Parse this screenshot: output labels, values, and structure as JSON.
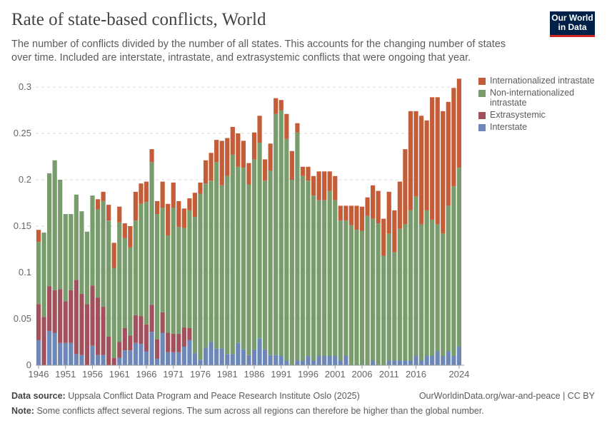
{
  "header": {
    "title": "Rate of state-based conflicts, World",
    "subtitle": "The number of conflicts divided by the number of all states. This accounts for the changing number of states over time. Included are interstate, intrastate, and extrasystemic conflicts that were ongoing that year.",
    "logo_text": "Our World in Data"
  },
  "footer": {
    "source_label": "Data source:",
    "source_text": "Uppsala Conflict Data Program and Peace Research Institute Oslo (2025)",
    "url_text": "OurWorldinData.org/war-and-peace | CC BY",
    "note_label": "Note:",
    "note_text": "Some conflicts affect several regions. The sum across all regions can therefore be higher than the global number."
  },
  "chart_data": {
    "type": "bar",
    "stacked": true,
    "title": "Rate of state-based conflicts, World",
    "xlabel": "",
    "ylabel": "",
    "ylim": [
      0,
      0.3
    ],
    "yticks": [
      0,
      0.05,
      0.1,
      0.15,
      0.2,
      0.25,
      0.3
    ],
    "ytick_labels": [
      "0",
      "0.05",
      "0.1",
      "0.15",
      "0.2",
      "0.25",
      "0.3"
    ],
    "xtick_labels": [
      "1946",
      "1951",
      "1956",
      "1961",
      "1966",
      "1971",
      "1976",
      "1981",
      "1986",
      "1991",
      "1996",
      "2001",
      "2006",
      "2011",
      "2016",
      "2024"
    ],
    "grid": "horizontal dashed",
    "legend_position": "right",
    "categories": [
      1946,
      1947,
      1948,
      1949,
      1950,
      1951,
      1952,
      1953,
      1954,
      1955,
      1956,
      1957,
      1958,
      1959,
      1960,
      1961,
      1962,
      1963,
      1964,
      1965,
      1966,
      1967,
      1968,
      1969,
      1970,
      1971,
      1972,
      1973,
      1974,
      1975,
      1976,
      1977,
      1978,
      1979,
      1980,
      1981,
      1982,
      1983,
      1984,
      1985,
      1986,
      1987,
      1988,
      1989,
      1990,
      1991,
      1992,
      1993,
      1994,
      1995,
      1996,
      1997,
      1998,
      1999,
      2000,
      2001,
      2002,
      2003,
      2004,
      2005,
      2006,
      2007,
      2008,
      2009,
      2010,
      2011,
      2012,
      2013,
      2014,
      2015,
      2016,
      2017,
      2018,
      2019,
      2020,
      2021,
      2022,
      2023,
      2024
    ],
    "series": [
      {
        "name": "Interstate",
        "color": "#6c87b8",
        "values": [
          0.027,
          0,
          0.037,
          0.035,
          0.024,
          0.024,
          0.024,
          0.012,
          0.011,
          0,
          0.021,
          0.011,
          0.011,
          0,
          0,
          0.008,
          0.016,
          0.016,
          0.024,
          0.023,
          0.015,
          0.036,
          0.007,
          0.035,
          0.014,
          0.014,
          0.014,
          0.02,
          0.027,
          0.013,
          0.006,
          0.019,
          0.025,
          0.018,
          0.018,
          0.012,
          0.012,
          0.024,
          0.017,
          0.011,
          0.017,
          0.029,
          0.017,
          0.011,
          0.011,
          0.01,
          0.005,
          0,
          0.005,
          0.005,
          0.01,
          0.005,
          0.01,
          0.01,
          0.01,
          0.01,
          0.005,
          0.01,
          0,
          0,
          0,
          0,
          0.005,
          0,
          0,
          0.005,
          0.005,
          0.005,
          0.005,
          0.005,
          0.01,
          0.005,
          0.01,
          0.01,
          0.015,
          0.01,
          0.015,
          0.01,
          0.02
        ]
      },
      {
        "name": "Extrasystemic",
        "color": "#a2515c",
        "values": [
          0.039,
          0.052,
          0.048,
          0.046,
          0.058,
          0.045,
          0.057,
          0.08,
          0.066,
          0.066,
          0.065,
          0.062,
          0.052,
          0.031,
          0.008,
          0.017,
          0.024,
          0.016,
          0.03,
          0.03,
          0.029,
          0.029,
          0.021,
          0.022,
          0.021,
          0.02,
          0.02,
          0.021,
          0.013,
          0,
          0,
          0,
          0,
          0,
          0,
          0,
          0,
          0,
          0,
          0,
          0,
          0,
          0,
          0,
          0,
          0,
          0,
          0,
          0,
          0,
          0,
          0,
          0,
          0,
          0,
          0,
          0,
          0,
          0,
          0,
          0,
          0,
          0,
          0,
          0,
          0,
          0,
          0,
          0,
          0,
          0,
          0,
          0,
          0,
          0,
          0,
          0,
          0,
          0
        ]
      },
      {
        "name": "Non-internationalized intrastate",
        "color": "#789c6b",
        "values": [
          0.067,
          0.091,
          0.122,
          0.14,
          0.118,
          0.094,
          0.082,
          0.092,
          0.089,
          0.078,
          0.097,
          0.095,
          0.114,
          0.125,
          0.097,
          0.129,
          0.097,
          0.095,
          0.102,
          0.121,
          0.132,
          0.154,
          0.135,
          0.113,
          0.105,
          0.136,
          0.115,
          0.107,
          0.127,
          0.147,
          0.179,
          0.177,
          0.174,
          0.201,
          0.176,
          0.192,
          0.215,
          0.19,
          0.196,
          0.184,
          0.205,
          0.211,
          0.182,
          0.199,
          0.26,
          0.265,
          0.239,
          0.2,
          0.246,
          0.199,
          0.189,
          0.178,
          0.168,
          0.168,
          0.178,
          0.168,
          0.151,
          0.146,
          0.151,
          0.146,
          0.145,
          0.161,
          0.153,
          0.153,
          0.118,
          0.137,
          0.117,
          0.142,
          0.147,
          0.162,
          0.172,
          0.147,
          0.157,
          0.147,
          0.137,
          0.132,
          0.157,
          0.183,
          0.193
        ]
      },
      {
        "name": "Internationalized intrastate",
        "color": "#c45c38",
        "values": [
          0.013,
          0,
          0,
          0,
          0,
          0,
          0,
          0,
          0,
          0,
          0,
          0.011,
          0.01,
          0.017,
          0.027,
          0.017,
          0.016,
          0.023,
          0.031,
          0.022,
          0.022,
          0.014,
          0.014,
          0.028,
          0.034,
          0.027,
          0.028,
          0.021,
          0.013,
          0.026,
          0.012,
          0.025,
          0.03,
          0.024,
          0.048,
          0.041,
          0.03,
          0.036,
          0.029,
          0.023,
          0.029,
          0.029,
          0.023,
          0.029,
          0.017,
          0.011,
          0.027,
          0.031,
          0.01,
          0.01,
          0.015,
          0.021,
          0.031,
          0.031,
          0.021,
          0.026,
          0.016,
          0.016,
          0.021,
          0.026,
          0.026,
          0.02,
          0.036,
          0.035,
          0.04,
          0.045,
          0.045,
          0.051,
          0.081,
          0.107,
          0.092,
          0.117,
          0.097,
          0.132,
          0.137,
          0.132,
          0.112,
          0.106,
          0.096
        ]
      }
    ]
  }
}
